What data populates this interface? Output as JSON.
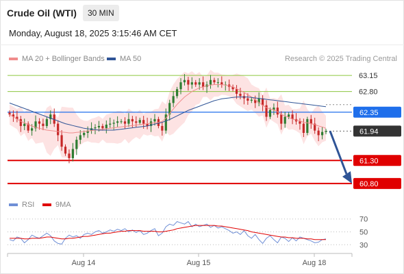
{
  "header": {
    "title": "Crude Oil (WTI)",
    "timeframe": "30 MIN",
    "datetime": "Monday, August 18, 2025 3:15:46 AM CET"
  },
  "legend": {
    "ma20_label": "MA 20 + Bollinger Bands",
    "ma20_color": "#f08c8c",
    "ma50_label": "MA 50",
    "ma50_color": "#2f5496",
    "credit": "Research © 2025 Trading Central"
  },
  "rsi_legend": {
    "rsi_label": "RSI",
    "rsi_color": "#6f8fd6",
    "ma_label": "9MA",
    "ma_color": "#e00000"
  },
  "chart_data": [
    {
      "type": "candlestick",
      "ylim": [
        60.5,
        63.3
      ],
      "x_ticks": [
        "Aug 14",
        "Aug 15",
        "Aug 18"
      ],
      "levels": [
        {
          "value": 63.15,
          "label": "63.15",
          "style": "resistance-thin",
          "color": "#8cc63f"
        },
        {
          "value": 62.8,
          "label": "62.80",
          "style": "resistance-thin",
          "color": "#8cc63f"
        },
        {
          "value": 62.35,
          "label": "62.35",
          "style": "pivot",
          "color": "#1f6feb"
        },
        {
          "value": 61.94,
          "label": "61.94",
          "style": "last-price",
          "color": "#333333"
        },
        {
          "value": 61.3,
          "label": "61.30",
          "style": "support",
          "color": "#e00000"
        },
        {
          "value": 60.8,
          "label": "60.80",
          "style": "support",
          "color": "#e00000"
        }
      ],
      "closes": [
        62.3,
        62.25,
        62.2,
        62.05,
        62.1,
        61.95,
        62.0,
        62.15,
        62.1,
        62.05,
        62.2,
        62.3,
        62.1,
        61.85,
        61.6,
        61.45,
        61.35,
        61.55,
        61.75,
        61.85,
        61.9,
        61.95,
        62.0,
        62.02,
        62.05,
        62.0,
        62.08,
        62.1,
        62.12,
        62.15,
        62.15,
        62.1,
        62.2,
        62.15,
        62.12,
        62.18,
        62.1,
        62.05,
        62.15,
        62.2,
        62.05,
        61.95,
        62.3,
        62.55,
        62.7,
        62.85,
        63.0,
        63.05,
        62.95,
        63.0,
        62.95,
        63.0,
        62.9,
        62.95,
        63.05,
        63.0,
        63.0,
        62.95,
        62.95,
        62.9,
        62.85,
        62.75,
        62.7,
        62.65,
        62.6,
        62.62,
        62.55,
        62.65,
        62.5,
        62.25,
        62.4,
        62.45,
        62.3,
        62.1,
        62.25,
        62.3,
        62.2,
        62.15,
        62.1,
        61.9,
        62.2,
        62.1,
        61.95,
        61.85,
        61.92,
        61.94
      ],
      "ma20": [
        62.3,
        62.25,
        62.2,
        62.15,
        62.12,
        62.08,
        62.05,
        62.02,
        62.0,
        61.98,
        61.96,
        61.95,
        61.94,
        61.93,
        61.92,
        61.91,
        61.9,
        61.9,
        61.91,
        61.92,
        61.93,
        61.94,
        61.95,
        61.96,
        61.97,
        61.98,
        61.99,
        62.0,
        62.01,
        62.02,
        62.03,
        62.04,
        62.05,
        62.06,
        62.07,
        62.08,
        62.09,
        62.1,
        62.11,
        62.12,
        62.13,
        62.15,
        62.22,
        62.32,
        62.42,
        62.52,
        62.6,
        62.68,
        62.74,
        62.8,
        62.84,
        62.88,
        62.9,
        62.92,
        62.94,
        62.95,
        62.95,
        62.95,
        62.94,
        62.92,
        62.9,
        62.86,
        62.82,
        62.78,
        62.73,
        62.68,
        62.62,
        62.56,
        62.5,
        62.45,
        62.42,
        62.4,
        62.36,
        62.3,
        62.27,
        62.24,
        62.2,
        62.18,
        62.16,
        62.13,
        62.12,
        62.1,
        62.08,
        62.05,
        62.03,
        62.0
      ],
      "ma50": [
        62.55,
        62.52,
        62.49,
        62.46,
        62.43,
        62.4,
        62.37,
        62.34,
        62.31,
        62.28,
        62.25,
        62.22,
        62.19,
        62.16,
        62.13,
        62.1,
        62.08,
        62.06,
        62.04,
        62.02,
        62.0,
        61.99,
        61.98,
        61.97,
        61.96,
        61.96,
        61.96,
        61.96,
        61.96,
        61.97,
        61.98,
        61.99,
        62.0,
        62.01,
        62.02,
        62.03,
        62.04,
        62.05,
        62.07,
        62.09,
        62.11,
        62.13,
        62.16,
        62.19,
        62.23,
        62.27,
        62.31,
        62.35,
        62.39,
        62.42,
        62.45,
        62.48,
        62.51,
        62.54,
        62.57,
        62.6,
        62.62,
        62.64,
        62.65,
        62.66,
        62.67,
        62.68,
        62.68,
        62.68,
        62.68,
        62.67,
        62.66,
        62.65,
        62.64,
        62.63,
        62.62,
        62.61,
        62.6,
        62.59,
        62.58,
        62.57,
        62.56,
        62.55,
        62.54,
        62.53,
        62.52,
        62.51,
        62.5,
        62.49,
        62.48,
        62.47
      ]
    },
    {
      "type": "line",
      "panel": "rsi",
      "ylim": [
        25,
        75
      ],
      "y_ticks": [
        "70",
        "50",
        "30"
      ],
      "series": [
        {
          "name": "RSI",
          "values": [
            38,
            36,
            42,
            40,
            33,
            38,
            45,
            42,
            40,
            44,
            48,
            44,
            36,
            32,
            31,
            40,
            45,
            42,
            44,
            40,
            46,
            48,
            46,
            50,
            52,
            48,
            50,
            53,
            51,
            54,
            52,
            55,
            50,
            53,
            49,
            52,
            46,
            48,
            52,
            55,
            44,
            48,
            58,
            62,
            60,
            66,
            64,
            62,
            66,
            58,
            62,
            58,
            60,
            62,
            57,
            60,
            56,
            58,
            55,
            52,
            48,
            50,
            46,
            52,
            44,
            40,
            46,
            38,
            32,
            40,
            44,
            38,
            33,
            42,
            40,
            35,
            41,
            36,
            42,
            40,
            38,
            36,
            33,
            34,
            38,
            39
          ]
        },
        {
          "name": "9MA",
          "values": [
            40,
            40,
            40,
            40,
            39,
            39,
            40,
            40,
            40,
            41,
            42,
            42,
            41,
            40,
            39,
            39,
            40,
            40,
            41,
            42,
            43,
            43,
            44,
            45,
            46,
            47,
            48,
            48,
            49,
            50,
            51,
            51,
            52,
            52,
            52,
            52,
            51,
            51,
            51,
            51,
            50,
            50,
            51,
            52,
            53,
            55,
            56,
            57,
            58,
            59,
            60,
            60,
            60,
            60,
            60,
            60,
            59,
            59,
            58,
            57,
            56,
            55,
            54,
            53,
            52,
            50,
            49,
            48,
            47,
            46,
            45,
            44,
            43,
            42,
            42,
            41,
            41,
            40,
            40,
            40,
            39,
            39,
            38,
            38,
            38,
            38
          ]
        }
      ]
    }
  ]
}
